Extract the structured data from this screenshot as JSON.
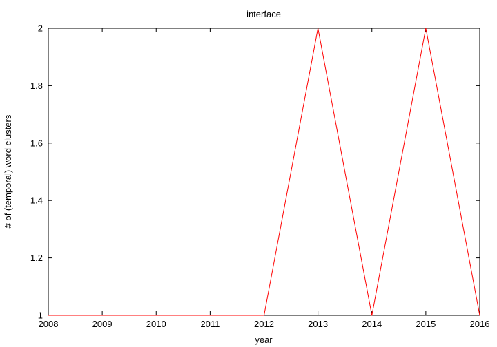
{
  "chart_data": {
    "type": "line",
    "title": "interface",
    "xlabel": "year",
    "ylabel": "# of (temporal) word clusters",
    "xlim": [
      2008,
      2016
    ],
    "ylim": [
      1,
      2
    ],
    "xticks": [
      "2008",
      "2009",
      "2010",
      "2011",
      "2012",
      "2013",
      "2014",
      "2015",
      "2016"
    ],
    "yticks": [
      "1",
      "1.2",
      "1.4",
      "1.6",
      "1.8",
      "2"
    ],
    "grid": false,
    "legend": "none",
    "series": [
      {
        "color": "#ff0000",
        "x": [
          2008,
          2009,
          2010,
          2011,
          2012,
          2013,
          2014,
          2015,
          2016
        ],
        "y": [
          1,
          1,
          1,
          1,
          1,
          2,
          1,
          2,
          1
        ]
      }
    ]
  }
}
